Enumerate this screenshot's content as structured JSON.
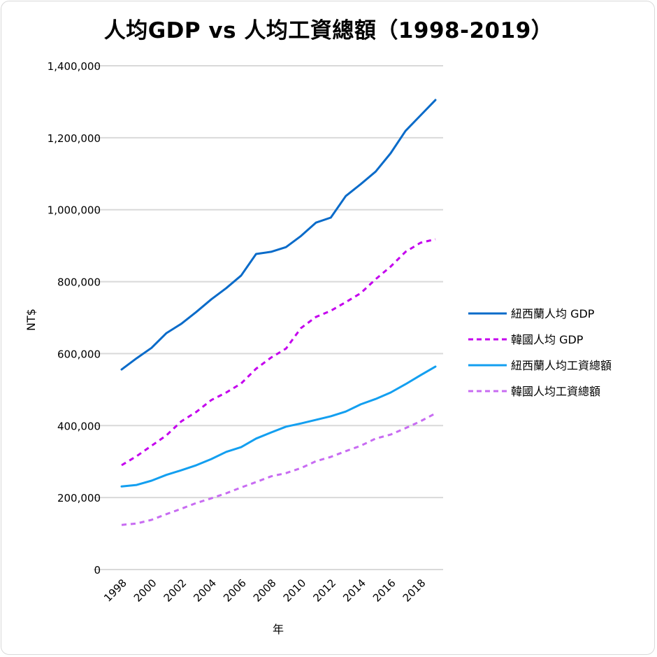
{
  "chart_data": {
    "type": "line",
    "title": "人均GDP vs 人均工資總額（1998-2019）",
    "xlabel": "年",
    "ylabel": "NT$",
    "ylim": [
      0,
      1400000
    ],
    "yticks": [
      0,
      200000,
      400000,
      600000,
      800000,
      1000000,
      1200000,
      1400000
    ],
    "ytick_labels": [
      "0",
      "200,000",
      "400,000",
      "600,000",
      "800,000",
      "1,000,000",
      "1,200,000",
      "1,400,000"
    ],
    "x": [
      1998,
      1999,
      2000,
      2001,
      2002,
      2003,
      2004,
      2005,
      2006,
      2007,
      2008,
      2009,
      2010,
      2011,
      2012,
      2013,
      2014,
      2015,
      2016,
      2017,
      2018,
      2019
    ],
    "xtick_labels": [
      "1998",
      "2000",
      "2002",
      "2004",
      "2006",
      "2008",
      "2010",
      "2012",
      "2014",
      "2016",
      "2018"
    ],
    "grid": true,
    "legend_position": "right",
    "series": [
      {
        "name": "紐西蘭人均 GDP",
        "color": "#0a6bc9",
        "dash": "solid",
        "values": [
          556000,
          587000,
          616000,
          657000,
          683000,
          716000,
          751000,
          782000,
          817000,
          877000,
          883000,
          896000,
          927000,
          964000,
          978000,
          1038000,
          1071000,
          1106000,
          1157000,
          1219000,
          1262000,
          1305000
        ]
      },
      {
        "name": "韓國人均 GDP",
        "color": "#c400ee",
        "dash": "dashed",
        "values": [
          290000,
          315000,
          344000,
          373000,
          412000,
          438000,
          471000,
          492000,
          517000,
          558000,
          589000,
          614000,
          671000,
          702000,
          719000,
          743000,
          768000,
          807000,
          842000,
          883000,
          908000,
          918000
        ]
      },
      {
        "name": "紐西蘭人均工資總額",
        "color": "#139ff0",
        "dash": "solid",
        "values": [
          231000,
          235000,
          247000,
          263000,
          276000,
          290000,
          307000,
          327000,
          340000,
          364000,
          381000,
          397000,
          406000,
          416000,
          426000,
          439000,
          459000,
          474000,
          492000,
          515000,
          540000,
          564000
        ]
      },
      {
        "name": "韓國人均工資總額",
        "color": "#c86cf2",
        "dash": "dashed",
        "values": [
          124000,
          128000,
          138000,
          154000,
          169000,
          185000,
          198000,
          212000,
          228000,
          243000,
          259000,
          268000,
          282000,
          301000,
          313000,
          329000,
          344000,
          364000,
          375000,
          393000,
          412000,
          434000
        ]
      }
    ]
  }
}
